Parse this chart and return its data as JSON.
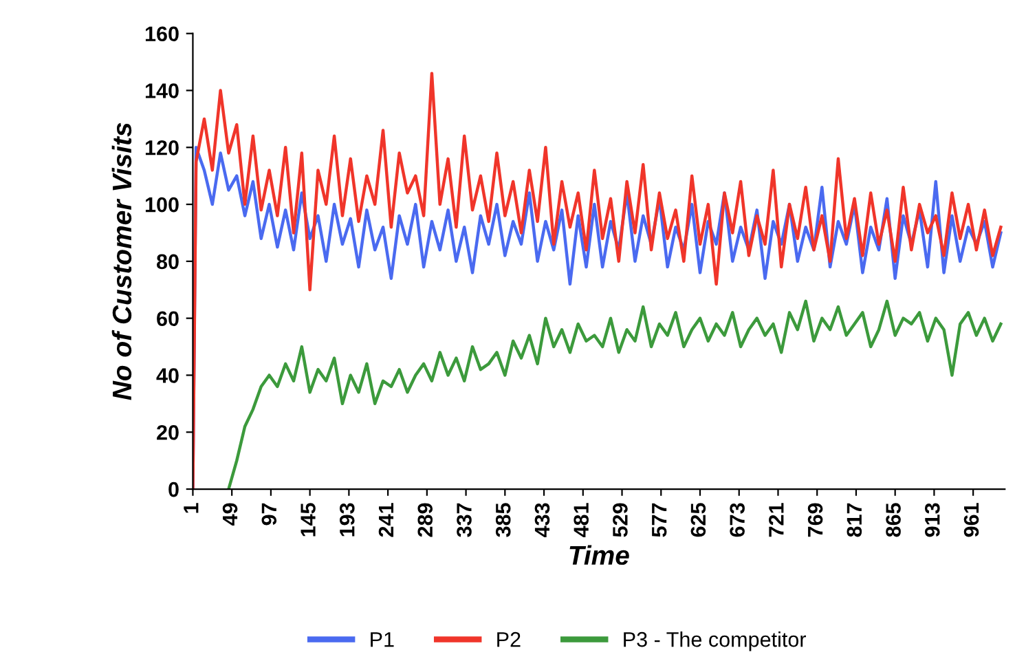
{
  "chart_data": {
    "type": "line",
    "xlabel": "Time",
    "ylabel": "No of Customer Visits",
    "x": [
      1,
      5,
      15,
      25,
      35,
      45,
      55,
      65,
      75,
      85,
      95,
      105,
      115,
      125,
      135,
      145,
      155,
      165,
      175,
      185,
      195,
      205,
      215,
      225,
      235,
      245,
      255,
      265,
      275,
      285,
      295,
      305,
      315,
      325,
      335,
      345,
      355,
      365,
      375,
      385,
      395,
      405,
      415,
      425,
      435,
      445,
      455,
      465,
      475,
      485,
      495,
      505,
      515,
      525,
      535,
      545,
      555,
      565,
      575,
      585,
      595,
      605,
      615,
      625,
      635,
      645,
      655,
      665,
      675,
      685,
      695,
      705,
      715,
      725,
      735,
      745,
      755,
      765,
      775,
      785,
      795,
      805,
      815,
      825,
      835,
      845,
      855,
      865,
      875,
      885,
      895,
      905,
      915,
      925,
      935,
      945,
      955,
      965,
      975,
      985,
      995
    ],
    "series": [
      {
        "name": "P1",
        "color": "#4a6af0",
        "values": [
          0,
          120,
          112,
          100,
          118,
          105,
          110,
          96,
          108,
          88,
          100,
          85,
          98,
          84,
          104,
          88,
          96,
          80,
          100,
          86,
          95,
          78,
          98,
          84,
          92,
          74,
          96,
          86,
          100,
          78,
          94,
          84,
          98,
          80,
          92,
          76,
          96,
          86,
          100,
          82,
          94,
          86,
          104,
          80,
          94,
          84,
          98,
          72,
          96,
          78,
          100,
          78,
          94,
          84,
          104,
          80,
          96,
          86,
          102,
          78,
          92,
          84,
          100,
          76,
          94,
          86,
          104,
          80,
          92,
          84,
          98,
          74,
          94,
          86,
          100,
          80,
          92,
          84,
          106,
          78,
          94,
          86,
          100,
          76,
          92,
          84,
          102,
          74,
          96,
          86,
          98,
          78,
          108,
          76,
          96,
          80,
          92,
          86,
          94,
          78,
          90
        ]
      },
      {
        "name": "P2",
        "color": "#f0352a",
        "values": [
          0,
          115,
          130,
          112,
          140,
          118,
          128,
          100,
          124,
          98,
          112,
          96,
          120,
          90,
          118,
          70,
          112,
          100,
          124,
          96,
          116,
          94,
          110,
          100,
          126,
          92,
          118,
          104,
          110,
          96,
          146,
          100,
          116,
          92,
          124,
          98,
          110,
          94,
          118,
          96,
          108,
          90,
          112,
          94,
          120,
          86,
          108,
          92,
          104,
          84,
          112,
          88,
          102,
          80,
          108,
          90,
          114,
          84,
          104,
          88,
          98,
          80,
          110,
          86,
          100,
          72,
          104,
          90,
          108,
          82,
          96,
          86,
          112,
          78,
          100,
          88,
          106,
          84,
          96,
          80,
          116,
          88,
          102,
          82,
          104,
          86,
          98,
          80,
          106,
          84,
          100,
          90,
          96,
          82,
          104,
          88,
          100,
          84,
          98,
          82,
          92
        ]
      },
      {
        "name": "P3 - The competitor",
        "color": "#3c9a3c",
        "values": [
          null,
          null,
          null,
          null,
          null,
          0,
          10,
          22,
          28,
          36,
          40,
          36,
          44,
          38,
          50,
          34,
          42,
          38,
          46,
          30,
          40,
          34,
          44,
          30,
          38,
          36,
          42,
          34,
          40,
          44,
          38,
          48,
          40,
          46,
          38,
          50,
          42,
          44,
          48,
          40,
          52,
          46,
          54,
          44,
          60,
          50,
          56,
          48,
          58,
          52,
          54,
          50,
          60,
          48,
          56,
          52,
          64,
          50,
          58,
          54,
          62,
          50,
          56,
          60,
          52,
          58,
          54,
          62,
          50,
          56,
          60,
          54,
          58,
          48,
          62,
          56,
          66,
          52,
          60,
          56,
          64,
          54,
          58,
          62,
          50,
          56,
          66,
          54,
          60,
          58,
          62,
          52,
          60,
          56,
          40,
          58,
          62,
          54,
          60,
          52,
          58
        ]
      }
    ],
    "xlim": [
      1,
      1000
    ],
    "xticks": [
      1,
      49,
      97,
      145,
      193,
      241,
      289,
      337,
      385,
      433,
      481,
      529,
      577,
      625,
      673,
      721,
      769,
      817,
      865,
      913,
      961
    ],
    "ylim": [
      0,
      160
    ],
    "yticks": [
      0,
      20,
      40,
      60,
      80,
      100,
      120,
      140,
      160
    ],
    "grid": false,
    "legend": "bottom",
    "line_style": "solid",
    "marker": "none"
  }
}
